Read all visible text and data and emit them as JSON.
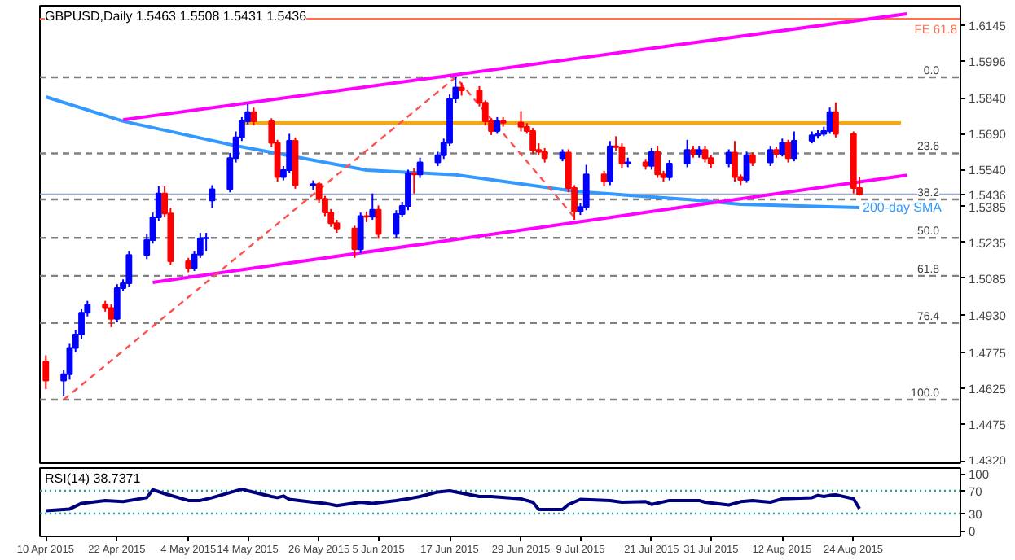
{
  "chart_data": [
    {
      "type": "candlestick",
      "title": "GBPUSD,Daily 1.5463 1.5508 1.5431 1.5436",
      "x": [
        "2015-04-10",
        "2015-04-13",
        "2015-04-14",
        "2015-04-15",
        "2015-04-16",
        "2015-04-17",
        "2015-04-20",
        "2015-04-21",
        "2015-04-22",
        "2015-04-23",
        "2015-04-24",
        "2015-04-27",
        "2015-04-28",
        "2015-04-29",
        "2015-04-30",
        "2015-05-01",
        "2015-05-04",
        "2015-05-05",
        "2015-05-06",
        "2015-05-07",
        "2015-05-08",
        "2015-05-11",
        "2015-05-12",
        "2015-05-13",
        "2015-05-14",
        "2015-05-15",
        "2015-05-18",
        "2015-05-19",
        "2015-05-20",
        "2015-05-21",
        "2015-05-22",
        "2015-05-25",
        "2015-05-26",
        "2015-05-27",
        "2015-05-28",
        "2015-05-29",
        "2015-06-01",
        "2015-06-02",
        "2015-06-03",
        "2015-06-04",
        "2015-06-05",
        "2015-06-08",
        "2015-06-09",
        "2015-06-10",
        "2015-06-11",
        "2015-06-12",
        "2015-06-15",
        "2015-06-16",
        "2015-06-17",
        "2015-06-18",
        "2015-06-19",
        "2015-06-22",
        "2015-06-23",
        "2015-06-24",
        "2015-06-25",
        "2015-06-26",
        "2015-06-29",
        "2015-06-30",
        "2015-07-01",
        "2015-07-02",
        "2015-07-03",
        "2015-07-06",
        "2015-07-07",
        "2015-07-08",
        "2015-07-09",
        "2015-07-10",
        "2015-07-13",
        "2015-07-14",
        "2015-07-15",
        "2015-07-16",
        "2015-07-17",
        "2015-07-20",
        "2015-07-21",
        "2015-07-22",
        "2015-07-23",
        "2015-07-24",
        "2015-07-27",
        "2015-07-28",
        "2015-07-29",
        "2015-07-30",
        "2015-07-31",
        "2015-08-03",
        "2015-08-04",
        "2015-08-05",
        "2015-08-06",
        "2015-08-07",
        "2015-08-10",
        "2015-08-11",
        "2015-08-12",
        "2015-08-13",
        "2015-08-14",
        "2015-08-17",
        "2015-08-18",
        "2015-08-19",
        "2015-08-20",
        "2015-08-21",
        "2015-08-24",
        "2015-08-25"
      ],
      "ohlc": [
        [
          1.4736,
          1.4762,
          1.462,
          1.4656
        ],
        [
          1.4656,
          1.47,
          1.4593,
          1.4683
        ],
        [
          1.4683,
          1.481,
          1.466,
          1.4793
        ],
        [
          1.4793,
          1.4868,
          1.4775,
          1.4849
        ],
        [
          1.4849,
          1.4955,
          1.483,
          1.494
        ],
        [
          1.494,
          1.499,
          1.4925,
          1.4974
        ],
        [
          1.4974,
          1.499,
          1.4945,
          1.496
        ],
        [
          1.496,
          1.4975,
          1.488,
          1.4915
        ],
        [
          1.4915,
          1.506,
          1.49,
          1.5043
        ],
        [
          1.5043,
          1.508,
          1.503,
          1.5064
        ],
        [
          1.5064,
          1.52,
          1.505,
          1.5182
        ],
        [
          1.5182,
          1.527,
          1.5165,
          1.5245
        ],
        [
          1.5245,
          1.536,
          1.523,
          1.534
        ],
        [
          1.534,
          1.547,
          1.5325,
          1.544
        ],
        [
          1.544,
          1.547,
          1.534,
          1.5356
        ],
        [
          1.5356,
          1.538,
          1.514,
          1.5156
        ],
        [
          1.5156,
          1.517,
          1.511,
          1.5127
        ],
        [
          1.5127,
          1.52,
          1.5115,
          1.5184
        ],
        [
          1.5184,
          1.5275,
          1.517,
          1.5252
        ],
        [
          1.5252,
          1.5275,
          1.52,
          1.5254
        ],
        [
          1.5411,
          1.5475,
          1.538,
          1.5458
        ],
        [
          1.5458,
          1.561,
          1.5445,
          1.5588
        ],
        [
          1.5588,
          1.57,
          1.557,
          1.5675
        ],
        [
          1.5675,
          1.576,
          1.566,
          1.5743
        ],
        [
          1.5743,
          1.5815,
          1.573,
          1.5781
        ],
        [
          1.5781,
          1.58,
          1.5725,
          1.5743
        ],
        [
          1.5743,
          1.5755,
          1.5635,
          1.5652
        ],
        [
          1.5652,
          1.5665,
          1.549,
          1.5509
        ],
        [
          1.5509,
          1.5555,
          1.5495,
          1.5538
        ],
        [
          1.5538,
          1.569,
          1.5525,
          1.5661
        ],
        [
          1.5661,
          1.5675,
          1.546,
          1.5475
        ],
        [
          1.5475,
          1.5495,
          1.5455,
          1.5479
        ],
        [
          1.5479,
          1.549,
          1.54,
          1.5418
        ],
        [
          1.5418,
          1.543,
          1.5345,
          1.5361
        ],
        [
          1.5361,
          1.5375,
          1.53,
          1.5315
        ],
        [
          1.5315,
          1.533,
          1.5275,
          1.5293
        ],
        [
          1.5293,
          1.5305,
          1.517,
          1.5206
        ],
        [
          1.5206,
          1.536,
          1.519,
          1.5345
        ],
        [
          1.5345,
          1.5365,
          1.532,
          1.5343
        ],
        [
          1.5343,
          1.544,
          1.533,
          1.5372
        ],
        [
          1.5372,
          1.539,
          1.525,
          1.527
        ],
        [
          1.527,
          1.537,
          1.5255,
          1.5354
        ],
        [
          1.5354,
          1.5405,
          1.534,
          1.5388
        ],
        [
          1.5388,
          1.554,
          1.537,
          1.5525
        ],
        [
          1.5525,
          1.5545,
          1.544,
          1.552
        ],
        [
          1.552,
          1.559,
          1.5505,
          1.557
        ],
        [
          1.557,
          1.5615,
          1.5555,
          1.56
        ],
        [
          1.56,
          1.567,
          1.5585,
          1.5652
        ],
        [
          1.5652,
          1.5855,
          1.564,
          1.5838
        ],
        [
          1.5838,
          1.593,
          1.582,
          1.5884
        ],
        [
          1.5884,
          1.5905,
          1.585,
          1.5872
        ],
        [
          1.5872,
          1.589,
          1.5805,
          1.582
        ],
        [
          1.582,
          1.583,
          1.5725,
          1.5743
        ],
        [
          1.5743,
          1.5755,
          1.5685,
          1.5702
        ],
        [
          1.5702,
          1.576,
          1.569,
          1.5743
        ],
        [
          1.5743,
          1.576,
          1.572,
          1.5737
        ],
        [
          1.5737,
          1.5785,
          1.57,
          1.572
        ],
        [
          1.572,
          1.5735,
          1.569,
          1.5702
        ],
        [
          1.5702,
          1.5715,
          1.5605,
          1.5622
        ],
        [
          1.5622,
          1.565,
          1.56,
          1.5615
        ],
        [
          1.5615,
          1.563,
          1.557,
          1.5588
        ],
        [
          1.5588,
          1.5625,
          1.5575,
          1.5611
        ],
        [
          1.5611,
          1.5625,
          1.5445,
          1.5463
        ],
        [
          1.5463,
          1.5475,
          1.533,
          1.5365
        ],
        [
          1.5365,
          1.54,
          1.535,
          1.5384
        ],
        [
          1.5384,
          1.556,
          1.537,
          1.552
        ],
        [
          1.552,
          1.5535,
          1.547,
          1.549
        ],
        [
          1.549,
          1.566,
          1.5475,
          1.5638
        ],
        [
          1.5638,
          1.568,
          1.562,
          1.5634
        ],
        [
          1.5634,
          1.565,
          1.5545,
          1.5565
        ],
        [
          1.5565,
          1.559,
          1.555,
          1.557
        ],
        [
          1.557,
          1.5585,
          1.554,
          1.5556
        ],
        [
          1.5556,
          1.563,
          1.554,
          1.5615
        ],
        [
          1.5615,
          1.564,
          1.5505,
          1.552
        ],
        [
          1.552,
          1.5535,
          1.549,
          1.5508
        ],
        [
          1.5508,
          1.558,
          1.5495,
          1.5565
        ],
        [
          1.5565,
          1.5665,
          1.555,
          1.5622
        ],
        [
          1.5622,
          1.564,
          1.559,
          1.5606
        ],
        [
          1.5606,
          1.564,
          1.559,
          1.5622
        ],
        [
          1.5622,
          1.564,
          1.557,
          1.5588
        ],
        [
          1.5588,
          1.56,
          1.5545,
          1.5565
        ],
        [
          1.5565,
          1.5625,
          1.555,
          1.5611
        ],
        [
          1.5611,
          1.566,
          1.549,
          1.5509
        ],
        [
          1.5509,
          1.552,
          1.5475,
          1.5497
        ],
        [
          1.5497,
          1.5615,
          1.5485,
          1.56
        ],
        [
          1.56,
          1.5612,
          1.5555,
          1.557
        ],
        [
          1.557,
          1.564,
          1.5555,
          1.5622
        ],
        [
          1.5622,
          1.5635,
          1.559,
          1.5606
        ],
        [
          1.5606,
          1.567,
          1.5595,
          1.5652
        ],
        [
          1.5652,
          1.5665,
          1.557,
          1.5588
        ],
        [
          1.5588,
          1.57,
          1.5575,
          1.5661
        ],
        [
          1.5661,
          1.57,
          1.565,
          1.5684
        ],
        [
          1.5684,
          1.5705,
          1.567,
          1.569
        ],
        [
          1.569,
          1.572,
          1.568,
          1.5702
        ],
        [
          1.5702,
          1.58,
          1.569,
          1.5781
        ],
        [
          1.5781,
          1.5822,
          1.5675,
          1.569
        ],
        [
          1.569,
          1.57,
          1.544,
          1.5463
        ],
        [
          1.5463,
          1.5508,
          1.5431,
          1.5436
        ]
      ],
      "series": [
        {
          "name": "200-day SMA",
          "type": "line",
          "color": "#3399ff",
          "x": [
            "2015-04-10",
            "2015-04-23",
            "2015-05-12",
            "2015-06-03",
            "2015-06-18",
            "2015-07-08",
            "2015-07-27",
            "2015-08-05",
            "2015-08-25"
          ],
          "values": [
            1.5845,
            1.5743,
            1.564,
            1.5538,
            1.5518,
            1.5449,
            1.5415,
            1.5395,
            1.5381
          ]
        },
        {
          "type": "line",
          "color": "#ff00ff",
          "x": [
            "2015-04-23",
            "2015-09-02"
          ],
          "values": [
            1.5749,
            1.6193
          ]
        },
        {
          "type": "line",
          "color": "#ff00ff",
          "x": [
            "2015-04-28",
            "2015-09-02"
          ],
          "values": [
            1.5067,
            1.5517
          ]
        },
        {
          "type": "line",
          "color": "#ffa500",
          "x": [
            "2015-05-13",
            "2015-09-01"
          ],
          "values": [
            1.5736,
            1.5736
          ]
        },
        {
          "type": "line",
          "color": "#ff5050",
          "line_style": "dashed",
          "x": [
            "2015-04-13",
            "2015-06-18",
            "2015-07-08"
          ],
          "values": [
            1.4576,
            1.5927,
            1.534
          ]
        }
      ],
      "xlim": [
        "2015-04-09",
        "2015-09-11"
      ],
      "ylim": [
        1.431,
        1.6227
      ],
      "annotations": [
        {
          "text": "0.0",
          "x": "2015-09-08",
          "y": 1.5927
        },
        {
          "text": "23.6",
          "x": "2015-09-08",
          "y": 1.5608
        },
        {
          "text": "38.2",
          "x": "2015-09-08",
          "y": 1.5415
        },
        {
          "text": "50.0",
          "x": "2015-09-08",
          "y": 1.5254
        },
        {
          "text": "61.8",
          "x": "2015-09-08",
          "y": 1.5095
        },
        {
          "text": "76.4",
          "x": "2015-09-08",
          "y": 1.4897
        },
        {
          "text": "100.0",
          "x": "2015-09-08",
          "y": 1.4576
        }
      ],
      "yticks": [
        1.6145,
        1.5996,
        {
          "value": 1.584,
          "label": "1.5840"
        },
        {
          "value": 1.569,
          "label": "1.5690"
        },
        {
          "value": 1.554,
          "label": "1.5540"
        },
        1.5436,
        1.5385,
        1.5235,
        1.5085,
        {
          "value": 1.493,
          "label": "1.4930"
        },
        1.4775,
        1.4625,
        1.4475,
        {
          "value": 1.432,
          "label": "1.4320"
        }
      ],
      "tick_labels": "y",
      "ref_lines": [
        {
          "axis": "y",
          "value": 1.6172,
          "label": "FE 61.8",
          "color": "#ff7050",
          "line_style": "solid"
        },
        {
          "axis": "y",
          "value": 1.5927,
          "color": "#808080",
          "line_style": "dashed"
        },
        {
          "axis": "y",
          "value": 1.5608,
          "color": "#808080",
          "line_style": "dashed"
        },
        {
          "axis": "y",
          "value": 1.5415,
          "color": "#808080",
          "line_style": "dashed"
        },
        {
          "axis": "y",
          "value": 1.5254,
          "color": "#808080",
          "line_style": "dashed"
        },
        {
          "axis": "y",
          "value": 1.5095,
          "color": "#808080",
          "line_style": "dashed"
        },
        {
          "axis": "y",
          "value": 1.4897,
          "color": "#808080",
          "line_style": "dashed"
        },
        {
          "axis": "y",
          "value": 1.4576,
          "color": "#808080",
          "line_style": "dashed"
        },
        {
          "axis": "y",
          "value": 1.5436,
          "color": "#a0a8c0",
          "line_style": "solid"
        }
      ]
    },
    {
      "type": "line",
      "title": "RSI(14) 38.7371",
      "color": "#00007f",
      "x": [
        "2015-04-10",
        "2015-04-14",
        "2015-04-16",
        "2015-04-20",
        "2015-04-23",
        "2015-04-27",
        "2015-04-28",
        "2015-04-30",
        "2015-05-04",
        "2015-05-06",
        "2015-05-08",
        "2015-05-11",
        "2015-05-13",
        "2015-05-14",
        "2015-05-18",
        "2015-05-19",
        "2015-05-20",
        "2015-05-21",
        "2015-05-25",
        "2015-05-27",
        "2015-05-29",
        "2015-06-02",
        "2015-06-04",
        "2015-06-08",
        "2015-06-10",
        "2015-06-12",
        "2015-06-15",
        "2015-06-17",
        "2015-06-22",
        "2015-06-24",
        "2015-06-29",
        "2015-07-01",
        "2015-07-02",
        "2015-07-06",
        "2015-07-07",
        "2015-07-09",
        "2015-07-14",
        "2015-07-16",
        "2015-07-20",
        "2015-07-21",
        "2015-07-24",
        "2015-07-29",
        "2015-07-30",
        "2015-08-03",
        "2015-08-05",
        "2015-08-07",
        "2015-08-10",
        "2015-08-12",
        "2015-08-17",
        "2015-08-18",
        "2015-08-19",
        "2015-08-20",
        "2015-08-21",
        "2015-08-24",
        "2015-08-25"
      ],
      "values": [
        35,
        38,
        48,
        53,
        51,
        58,
        72,
        65,
        53,
        53,
        58,
        67,
        73,
        70,
        60,
        58,
        61,
        55,
        50,
        48,
        44,
        50,
        48,
        53,
        56,
        60,
        68,
        70,
        60,
        60,
        56,
        50,
        37,
        37,
        46,
        55,
        53,
        50,
        51,
        46,
        53,
        53,
        50,
        45,
        51,
        53,
        50,
        56,
        58,
        62,
        60,
        62,
        63,
        56,
        38.7
      ],
      "xlim": [
        "2015-04-09",
        "2015-09-11"
      ],
      "ylim": [
        -10,
        110
      ],
      "yticks": [
        100,
        70,
        30,
        0
      ],
      "xticks": [
        {
          "value": "2015-04-10",
          "label": "10 Apr 2015"
        },
        {
          "value": "2015-04-22",
          "label": "22 Apr 2015"
        },
        {
          "value": "2015-05-04",
          "label": "4 May 2015"
        },
        {
          "value": "2015-05-14",
          "label": "14 May 2015"
        },
        {
          "value": "2015-05-26",
          "label": "26 May 2015"
        },
        {
          "value": "2015-06-05",
          "label": "5 Jun 2015"
        },
        {
          "value": "2015-06-17",
          "label": "17 Jun 2015"
        },
        {
          "value": "2015-06-29",
          "label": "29 Jun 2015"
        },
        {
          "value": "2015-07-09",
          "label": "9 Jul 2015"
        },
        {
          "value": "2015-07-21",
          "label": "21 Jul 2015"
        },
        {
          "value": "2015-07-31",
          "label": "31 Jul 2015"
        },
        {
          "value": "2015-08-12",
          "label": "12 Aug 2015"
        },
        {
          "value": "2015-08-24",
          "label": "24 Aug 2015"
        }
      ],
      "ref_lines": [
        {
          "axis": "y",
          "value": 70,
          "color": "#20a0a0",
          "line_style": "dotted"
        },
        {
          "axis": "y",
          "value": 30,
          "color": "#20a0a0",
          "line_style": "dotted"
        }
      ]
    }
  ]
}
